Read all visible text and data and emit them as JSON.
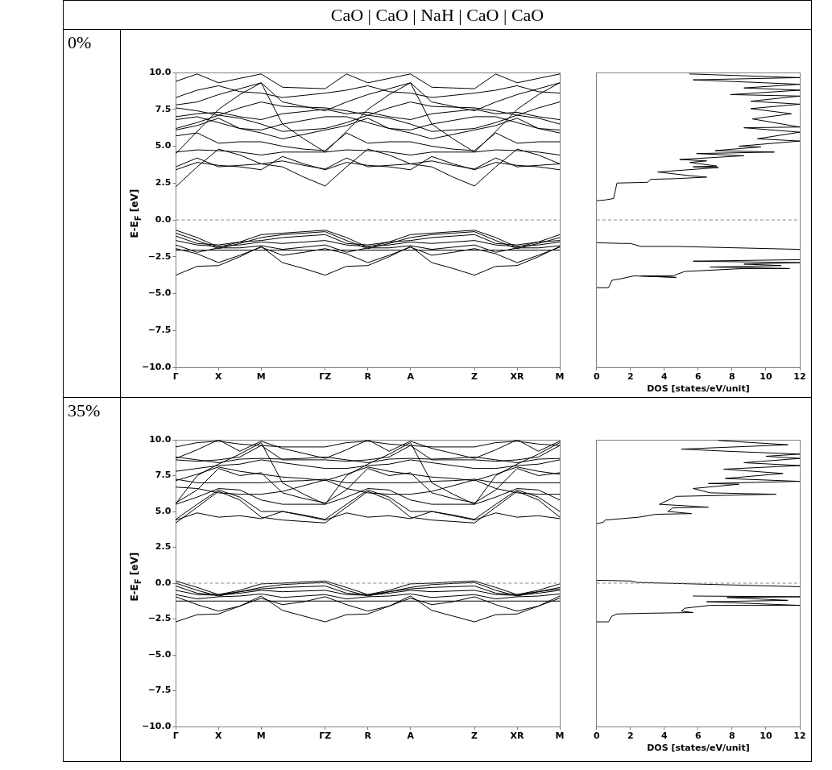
{
  "chart_data": [
    {
      "type": "line",
      "title": "CaO | CaO | NaH | CaO | CaO",
      "subtitle": "0%",
      "ylabel": "E-E$_{F}$ [eV]",
      "categories": [
        "Γ",
        null,
        "X",
        null,
        "M",
        null,
        null,
        "ΓZ",
        null,
        "R",
        null,
        "A",
        null,
        null,
        "Z",
        null,
        "XR",
        null,
        "M"
      ],
      "ylim": [
        -10,
        10
      ],
      "yticks": [
        {
          "value": -10,
          "label": "−10.0"
        },
        {
          "value": -7.5,
          "label": "−7.5"
        },
        {
          "value": -5,
          "label": "−5.0"
        },
        {
          "value": -2.5,
          "label": "−2.5"
        },
        {
          "value": 0,
          "label": "0.0"
        },
        {
          "value": 2.5,
          "label": "2.5"
        },
        {
          "value": 5,
          "label": "5.0"
        },
        {
          "value": 7.5,
          "label": "7.5"
        },
        {
          "value": 10,
          "label": "10.0"
        }
      ],
      "ref_lines": [
        {
          "axis": "y",
          "value": 0,
          "color": "#888888",
          "line_style": "dashed"
        }
      ],
      "series": [
        {
          "color": "#000000",
          "values": [
            -3.75,
            -3.15,
            -3.1,
            -2.5,
            -1.8,
            -2.9,
            -3.3,
            -3.75,
            -3.15,
            -3.1,
            -2.5,
            -1.8,
            -2.9,
            -3.3,
            -3.75,
            -3.15,
            -3.1,
            -2.5,
            -1.8
          ]
        },
        {
          "color": "#000000",
          "values": [
            -1.95,
            -2.3,
            -2.9,
            -2.4,
            -1.85,
            -2.4,
            -2.2,
            -1.95,
            -2.3,
            -2.9,
            -2.4,
            -1.85,
            -2.4,
            -2.2,
            -1.95,
            -2.3,
            -2.9,
            -2.4,
            -1.85
          ]
        },
        {
          "color": "#000000",
          "values": [
            -0.7,
            -1.2,
            -1.85,
            -1.5,
            -1.0,
            -0.9,
            -0.8,
            -0.7,
            -1.2,
            -1.85,
            -1.5,
            -1.0,
            -0.9,
            -0.8,
            -0.7,
            -1.2,
            -1.85,
            -1.5,
            -1.0
          ]
        },
        {
          "color": "#000000",
          "values": [
            -0.9,
            -1.4,
            -1.95,
            -1.6,
            -1.2,
            -1.0,
            -0.9,
            -0.8,
            -1.4,
            -1.95,
            -1.6,
            -1.2,
            -1.0,
            -0.9,
            -0.8,
            -1.4,
            -1.95,
            -1.6,
            -1.2
          ]
        },
        {
          "color": "#000000",
          "values": [
            -1.1,
            -1.6,
            -1.7,
            -1.5,
            -1.4,
            -1.2,
            -1.1,
            -1.0,
            -1.6,
            -1.7,
            -1.5,
            -1.4,
            -1.2,
            -1.1,
            -1.0,
            -1.6,
            -1.7,
            -1.5,
            -1.4
          ]
        },
        {
          "color": "#000000",
          "values": [
            -1.4,
            -1.7,
            -1.8,
            -1.7,
            -1.5,
            -1.6,
            -1.5,
            -1.4,
            -1.7,
            -1.8,
            -1.7,
            -1.5,
            -1.6,
            -1.5,
            -1.4,
            -1.7,
            -1.8,
            -1.7,
            -1.5
          ]
        },
        {
          "color": "#000000",
          "values": [
            -1.7,
            -2.2,
            -1.9,
            -1.9,
            -1.75,
            -2.0,
            -1.85,
            -1.7,
            -2.2,
            -1.9,
            -1.9,
            -1.75,
            -2.0,
            -1.85,
            -1.7,
            -2.2,
            -1.9,
            -1.9,
            -1.75
          ]
        },
        {
          "color": "#000000",
          "values": [
            -2.05,
            -2.05,
            -2.05,
            -2.05,
            -2.05,
            -2.05,
            -2.05,
            -2.05,
            -2.05,
            -2.05,
            -2.05,
            -2.05,
            -2.05,
            -2.05,
            -2.05,
            -2.05,
            -2.05,
            -2.05,
            -2.05
          ]
        },
        {
          "color": "#000000",
          "values": [
            2.25,
            3.6,
            4.8,
            4.4,
            3.8,
            3.6,
            2.9,
            2.3,
            3.6,
            4.8,
            4.4,
            3.8,
            3.6,
            2.9,
            2.3,
            3.6,
            4.8,
            4.4,
            3.8
          ]
        },
        {
          "color": "#000000",
          "values": [
            3.4,
            3.9,
            3.7,
            3.6,
            3.4,
            4.3,
            3.8,
            3.4,
            3.9,
            3.7,
            3.6,
            3.4,
            4.3,
            3.8,
            3.4,
            3.9,
            3.7,
            3.6,
            3.4
          ]
        },
        {
          "color": "#000000",
          "values": [
            3.6,
            4.2,
            3.6,
            3.7,
            3.8,
            4.0,
            3.7,
            3.45,
            4.2,
            3.6,
            3.7,
            3.8,
            4.0,
            3.7,
            3.45,
            4.2,
            3.6,
            3.7,
            3.8
          ]
        },
        {
          "color": "#000000",
          "values": [
            4.6,
            4.75,
            4.7,
            4.6,
            4.4,
            4.6,
            4.6,
            4.6,
            4.75,
            4.7,
            4.6,
            4.4,
            4.6,
            4.6,
            4.6,
            4.75,
            4.7,
            4.6,
            4.4
          ]
        },
        {
          "color": "#000000",
          "values": [
            5.7,
            5.9,
            5.2,
            5.3,
            5.3,
            5.0,
            4.8,
            4.7,
            5.9,
            5.2,
            5.3,
            5.3,
            5.0,
            4.8,
            4.7,
            5.9,
            5.2,
            5.3,
            5.3
          ]
        },
        {
          "color": "#000000",
          "values": [
            6.1,
            6.4,
            6.9,
            6.2,
            5.9,
            5.5,
            5.8,
            6.1,
            6.4,
            6.9,
            6.2,
            5.9,
            5.5,
            5.8,
            6.1,
            6.4,
            6.9,
            6.2,
            5.9
          ]
        },
        {
          "color": "#000000",
          "values": [
            6.2,
            6.6,
            7.1,
            6.9,
            6.5,
            6.0,
            6.1,
            6.2,
            6.6,
            7.1,
            6.9,
            6.5,
            6.0,
            6.1,
            6.2,
            6.6,
            7.1,
            6.9,
            6.5
          ]
        },
        {
          "color": "#000000",
          "values": [
            7.0,
            7.2,
            7.3,
            7.0,
            6.8,
            7.2,
            7.35,
            7.5,
            7.2,
            7.3,
            7.0,
            6.8,
            7.2,
            7.35,
            7.5,
            7.2,
            7.3,
            7.0,
            6.8
          ]
        },
        {
          "color": "#000000",
          "values": [
            7.6,
            7.4,
            7.1,
            7.6,
            8.0,
            7.7,
            7.65,
            7.6,
            7.4,
            7.1,
            7.6,
            8.0,
            7.7,
            7.65,
            7.6,
            7.4,
            7.1,
            7.6,
            8.0
          ]
        },
        {
          "color": "#000000",
          "values": [
            7.8,
            8.0,
            8.5,
            8.9,
            9.3,
            8.0,
            7.7,
            7.4,
            8.0,
            8.5,
            8.9,
            9.3,
            8.0,
            7.7,
            7.4,
            8.0,
            8.5,
            8.9,
            9.3
          ]
        },
        {
          "color": "#000000",
          "values": [
            8.3,
            8.8,
            9.1,
            8.7,
            8.6,
            8.3,
            8.45,
            8.6,
            8.8,
            9.1,
            8.7,
            8.6,
            8.3,
            8.45,
            8.6,
            8.8,
            9.1,
            8.7,
            8.6
          ]
        },
        {
          "color": "#000000",
          "values": [
            9.4,
            9.9,
            9.3,
            9.6,
            9.9,
            9.0,
            8.95,
            8.9,
            9.9,
            9.3,
            9.6,
            9.9,
            9.0,
            8.95,
            8.9,
            9.9,
            9.3,
            9.6,
            9.9
          ]
        },
        {
          "color": "#000000",
          "values": [
            4.5,
            6.0,
            7.5,
            8.5,
            9.3,
            6.5,
            5.5,
            4.6,
            6.0,
            7.5,
            8.5,
            9.3,
            6.5,
            5.5,
            4.6,
            6.0,
            7.5,
            8.5,
            9.3
          ]
        },
        {
          "color": "#000000",
          "values": [
            6.8,
            7.0,
            6.6,
            6.2,
            6.1,
            6.5,
            6.75,
            7.0,
            7.0,
            6.6,
            6.2,
            6.1,
            6.5,
            6.75,
            7.0,
            7.0,
            6.6,
            6.2,
            6.1
          ]
        }
      ]
    },
    {
      "type": "line",
      "xlabel": "DOS [states/eV/unit]",
      "tick_labels": "x",
      "xlim": [
        0,
        12
      ],
      "xticks": [
        0,
        2,
        4,
        6,
        8,
        10,
        12
      ],
      "ylim": [
        -10,
        10
      ],
      "ref_lines": [
        {
          "axis": "y",
          "value": 0,
          "color": "#888888",
          "line_style": "dashed"
        }
      ],
      "series": [
        {
          "color": "#000000",
          "x": [
            0,
            0.7,
            0.9,
            1.4,
            2.2,
            4.7,
            2.6,
            4.5,
            5.2,
            8.7,
            11.4,
            6.7,
            10.9,
            8.7,
            12,
            5.7,
            12,
            null,
            12,
            4.7,
            2.6,
            2.0,
            1.5,
            0
          ],
          "values": [
            -4.6,
            -4.6,
            -4.1,
            -4.0,
            -3.8,
            -3.9,
            -3.8,
            -3.8,
            -3.5,
            -3.3,
            -3.3,
            -3.2,
            -3.1,
            -3.0,
            -2.9,
            -2.8,
            -2.7,
            null,
            -2.0,
            -1.8,
            -1.8,
            -1.6,
            -1.6,
            -1.55
          ]
        },
        {
          "color": "#000000",
          "x": [
            0,
            0.5,
            1.0,
            1.2,
            3.0,
            3.2,
            4.7,
            6.5,
            5.5,
            3.6,
            7.2,
            5.7,
            7.1,
            5.5,
            6.5,
            4.9,
            8.7,
            5.9,
            10.5,
            7.0,
            9.7,
            8.4,
            12,
            9.5,
            12,
            8.7,
            12,
            9.2,
            11.5,
            9.1,
            12,
            9.1,
            12,
            7.9,
            12,
            8.7,
            12,
            5.7,
            12,
            5.5
          ],
          "values": [
            1.3,
            1.35,
            1.45,
            2.5,
            2.55,
            2.75,
            2.8,
            2.9,
            3.0,
            3.25,
            3.55,
            3.6,
            3.65,
            3.9,
            4.0,
            4.1,
            4.35,
            4.5,
            4.6,
            4.7,
            4.95,
            5.0,
            5.35,
            5.5,
            5.95,
            6.25,
            6.3,
            6.85,
            7.2,
            7.55,
            7.85,
            8.05,
            8.4,
            8.5,
            8.8,
            8.95,
            9.2,
            9.5,
            9.65,
            9.9
          ]
        }
      ]
    },
    {
      "type": "line",
      "subtitle": "35%",
      "ylabel": "E-E$_{F}$ [eV]",
      "categories": [
        "Γ",
        null,
        "X",
        null,
        "M",
        null,
        null,
        "ΓZ",
        null,
        "R",
        null,
        "A",
        null,
        null,
        "Z",
        null,
        "XR",
        null,
        "M"
      ],
      "ylim": [
        -10,
        10
      ],
      "yticks": [
        {
          "value": -10,
          "label": "−10.0"
        },
        {
          "value": -7.5,
          "label": "−7.5"
        },
        {
          "value": -5,
          "label": "−5.0"
        },
        {
          "value": -2.5,
          "label": "−2.5"
        },
        {
          "value": 0,
          "label": "0.0"
        },
        {
          "value": 2.5,
          "label": "2.5"
        },
        {
          "value": 5,
          "label": "5.0"
        },
        {
          "value": 7.5,
          "label": "7.5"
        },
        {
          "value": 10,
          "label": "10.0"
        }
      ],
      "ref_lines": [
        {
          "axis": "y",
          "value": 0,
          "color": "#888888",
          "line_style": "dashed"
        }
      ],
      "series": [
        {
          "color": "#000000",
          "values": [
            -2.7,
            -2.2,
            -2.15,
            -1.6,
            -0.9,
            -1.9,
            -2.3,
            -2.7,
            -2.2,
            -2.15,
            -1.6,
            -0.9,
            -1.9,
            -2.3,
            -2.7,
            -2.2,
            -2.15,
            -1.6,
            -0.9
          ]
        },
        {
          "color": "#000000",
          "values": [
            -0.95,
            -1.5,
            -1.95,
            -1.6,
            -1.05,
            -1.5,
            -1.3,
            -0.95,
            -1.5,
            -1.95,
            -1.6,
            -1.05,
            -1.5,
            -1.3,
            -0.95,
            -1.5,
            -1.95,
            -1.6,
            -1.05
          ]
        },
        {
          "color": "#000000",
          "values": [
            0.15,
            -0.3,
            -0.8,
            -0.5,
            -0.05,
            0.0,
            0.08,
            0.15,
            -0.3,
            -0.8,
            -0.5,
            -0.05,
            0.0,
            0.08,
            0.15,
            -0.3,
            -0.8,
            -0.5,
            -0.05
          ]
        },
        {
          "color": "#000000",
          "values": [
            0.0,
            -0.5,
            -0.9,
            -0.6,
            -0.3,
            -0.1,
            -0.02,
            0.05,
            -0.5,
            -0.9,
            -0.6,
            -0.3,
            -0.1,
            -0.02,
            0.05,
            -0.5,
            -0.9,
            -0.6,
            -0.3
          ]
        },
        {
          "color": "#000000",
          "values": [
            -0.2,
            -0.7,
            -0.8,
            -0.6,
            -0.4,
            -0.3,
            -0.25,
            -0.2,
            -0.7,
            -0.8,
            -0.6,
            -0.4,
            -0.3,
            -0.25,
            -0.2,
            -0.7,
            -0.8,
            -0.6,
            -0.4
          ]
        },
        {
          "color": "#000000",
          "values": [
            -0.5,
            -0.8,
            -0.85,
            -0.7,
            -0.5,
            -0.6,
            -0.55,
            -0.5,
            -0.8,
            -0.85,
            -0.7,
            -0.5,
            -0.6,
            -0.55,
            -0.5,
            -0.8,
            -0.85,
            -0.7,
            -0.5
          ]
        },
        {
          "color": "#000000",
          "values": [
            -0.8,
            -1.1,
            -0.95,
            -0.9,
            -0.75,
            -1.0,
            -0.9,
            -0.8,
            -1.1,
            -0.95,
            -0.9,
            -0.75,
            -1.0,
            -0.9,
            -0.8,
            -1.1,
            -0.95,
            -0.9,
            -0.75
          ]
        },
        {
          "color": "#000000",
          "values": [
            -1.25,
            -1.25,
            -1.25,
            -1.25,
            -1.25,
            -1.25,
            -1.25,
            -1.25,
            -1.25,
            -1.25,
            -1.25,
            -1.25,
            -1.25,
            -1.25,
            -1.25,
            -1.25,
            -1.25,
            -1.25,
            -1.25
          ]
        },
        {
          "color": "#000000",
          "values": [
            4.2,
            5.3,
            6.4,
            5.8,
            4.6,
            4.4,
            4.3,
            4.2,
            5.3,
            6.4,
            5.8,
            4.6,
            4.4,
            4.3,
            4.2,
            5.3,
            6.4,
            5.8,
            4.6
          ]
        },
        {
          "color": "#000000",
          "values": [
            4.4,
            4.9,
            4.6,
            4.7,
            4.5,
            5.0,
            4.7,
            4.4,
            4.9,
            4.6,
            4.7,
            4.5,
            5.0,
            4.7,
            4.4,
            4.9,
            4.6,
            4.7,
            4.5
          ]
        },
        {
          "color": "#000000",
          "values": [
            4.45,
            5.5,
            6.5,
            6.0,
            5.0,
            5.0,
            4.75,
            4.45,
            5.5,
            6.5,
            6.0,
            5.0,
            5.0,
            4.75,
            4.45,
            5.5,
            6.5,
            6.0,
            5.0
          ]
        },
        {
          "color": "#000000",
          "values": [
            5.5,
            6.0,
            6.6,
            6.5,
            5.8,
            5.5,
            5.5,
            5.5,
            6.0,
            6.6,
            6.5,
            5.8,
            5.5,
            5.5,
            5.5,
            6.0,
            6.6,
            6.5,
            5.8
          ]
        },
        {
          "color": "#000000",
          "values": [
            5.6,
            6.5,
            8.0,
            7.5,
            7.7,
            6.3,
            5.9,
            5.6,
            6.5,
            8.0,
            7.5,
            7.7,
            6.3,
            5.9,
            5.6,
            6.5,
            8.0,
            7.5,
            7.7
          ]
        },
        {
          "color": "#000000",
          "values": [
            6.7,
            6.6,
            6.3,
            6.2,
            6.2,
            6.4,
            6.8,
            7.2,
            6.6,
            6.3,
            6.2,
            6.2,
            6.4,
            6.8,
            7.2,
            6.6,
            6.3,
            6.2,
            6.2
          ]
        },
        {
          "color": "#000000",
          "values": [
            7.25,
            7.0,
            7.0,
            7.0,
            7.0,
            7.1,
            7.15,
            7.25,
            7.0,
            7.0,
            7.0,
            7.0,
            7.1,
            7.15,
            7.25,
            7.0,
            7.0,
            7.0,
            7.0
          ]
        },
        {
          "color": "#000000",
          "values": [
            7.15,
            7.6,
            8.1,
            7.8,
            7.6,
            7.4,
            7.3,
            7.15,
            7.6,
            8.1,
            7.8,
            7.6,
            7.4,
            7.3,
            7.15,
            7.6,
            8.1,
            7.8,
            7.6
          ]
        },
        {
          "color": "#000000",
          "values": [
            7.8,
            8.0,
            8.2,
            8.3,
            8.6,
            8.4,
            8.2,
            8.0,
            8.0,
            8.2,
            8.3,
            8.6,
            8.4,
            8.2,
            8.0,
            8.0,
            8.2,
            8.3,
            8.6
          ]
        },
        {
          "color": "#000000",
          "values": [
            8.6,
            8.5,
            8.6,
            8.8,
            9.6,
            8.6,
            8.6,
            8.6,
            8.5,
            8.6,
            8.8,
            9.6,
            8.6,
            8.6,
            8.6,
            8.5,
            8.6,
            8.8,
            9.6
          ]
        },
        {
          "color": "#000000",
          "values": [
            8.7,
            9.3,
            10.0,
            9.2,
            9.9,
            9.4,
            9.05,
            8.7,
            9.3,
            10.0,
            9.2,
            9.9,
            9.4,
            9.05,
            8.7,
            9.3,
            10.0,
            9.2,
            9.9
          ]
        },
        {
          "color": "#000000",
          "values": [
            9.5,
            9.8,
            9.9,
            9.7,
            9.6,
            9.5,
            9.5,
            9.5,
            9.8,
            9.9,
            9.7,
            9.6,
            9.5,
            9.5,
            9.5,
            9.8,
            9.9,
            9.7,
            9.6
          ]
        },
        {
          "color": "#000000",
          "values": [
            5.55,
            7.5,
            8.3,
            9.0,
            9.8,
            7.0,
            6.2,
            5.5,
            7.5,
            8.3,
            9.0,
            9.8,
            7.0,
            6.2,
            5.5,
            7.5,
            8.3,
            9.0,
            9.8
          ]
        },
        {
          "color": "#000000",
          "values": [
            8.8,
            8.6,
            8.4,
            8.65,
            8.7,
            8.65,
            8.7,
            8.8,
            8.6,
            8.4,
            8.65,
            8.7,
            8.65,
            8.7,
            8.8,
            8.6,
            8.4,
            8.65,
            8.7
          ]
        }
      ]
    },
    {
      "type": "line",
      "xlabel": "DOS [states/eV/unit]",
      "tick_labels": "x",
      "xlim": [
        0,
        12
      ],
      "xticks": [
        0,
        2,
        4,
        6,
        8,
        10,
        12
      ],
      "ylim": [
        -10,
        10
      ],
      "ref_lines": [
        {
          "axis": "y",
          "value": 0,
          "color": "#888888",
          "line_style": "dashed"
        }
      ],
      "series": [
        {
          "color": "#000000",
          "x": [
            0,
            0.7,
            0.9,
            1.2,
            3.0,
            5.7,
            5.0,
            5.2,
            6.7,
            12,
            6.5,
            11.3,
            7.7,
            12,
            5.7,
            null,
            12,
            4.0,
            2.4,
            2.0,
            0
          ],
          "values": [
            -2.7,
            -2.7,
            -2.3,
            -2.15,
            -2.1,
            -2.05,
            -1.95,
            -1.75,
            -1.55,
            -1.55,
            -1.3,
            -1.2,
            -1.0,
            -0.95,
            -0.9,
            null,
            -0.25,
            0.0,
            0.05,
            0.15,
            0.2
          ]
        },
        {
          "color": "#000000",
          "x": [
            0,
            0.4,
            0.5,
            1.5,
            2.5,
            3.5,
            5.6,
            4.2,
            4.5,
            6.6,
            3.7,
            4.7,
            10.6,
            6.7,
            5.7,
            8.4,
            6.6,
            12,
            7.6,
            11.0,
            7.5,
            12,
            8.7,
            12,
            10.0,
            12,
            7.7,
            5.0,
            11.3,
            7.2
          ],
          "values": [
            4.15,
            4.25,
            4.4,
            4.5,
            4.6,
            4.8,
            4.85,
            5.0,
            5.25,
            5.3,
            5.5,
            6.05,
            6.2,
            6.3,
            6.6,
            6.9,
            6.95,
            7.1,
            7.3,
            7.65,
            7.95,
            8.2,
            8.4,
            8.7,
            8.85,
            9.0,
            9.2,
            9.35,
            9.65,
            9.95
          ]
        }
      ]
    }
  ]
}
